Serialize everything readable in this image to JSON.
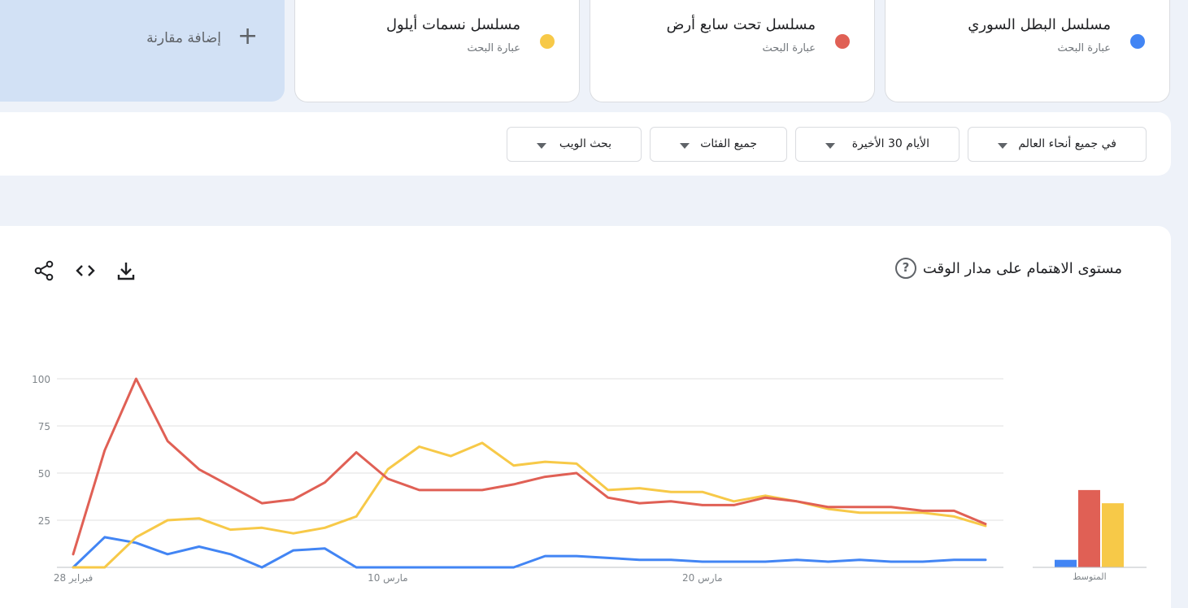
{
  "terms": [
    {
      "name": "مسلسل البطل السوري",
      "subtitle": "عبارة البحث",
      "color": "#4285f4"
    },
    {
      "name": "مسلسل تحت سابع أرض",
      "subtitle": "عبارة البحث",
      "color": "#e06055"
    },
    {
      "name": "مسلسل نسمات أيلول",
      "subtitle": "عبارة البحث",
      "color": "#f7c948"
    }
  ],
  "add_comparison": {
    "label": "إضافة مقارنة"
  },
  "filters": {
    "region": "في جميع أنحاء العالم",
    "period": "الأيام 30 الأخيرة",
    "category": "جميع الفئات",
    "search_type": "بحث الويب"
  },
  "chart": {
    "title": "مستوى الاهتمام على مدار الوقت",
    "average_label": "المتوسط"
  },
  "chart_data": {
    "type": "line",
    "ylim": [
      0,
      100
    ],
    "yticks": [
      25,
      50,
      75,
      100
    ],
    "xtick_labels": [
      {
        "index": 0,
        "label": "28 فبراير"
      },
      {
        "index": 10,
        "label": "10 مارس"
      },
      {
        "index": 20,
        "label": "20 مارس"
      }
    ],
    "series": [
      {
        "name": "مسلسل البطل السوري",
        "color": "#4285f4",
        "values": [
          0,
          16,
          13,
          7,
          11,
          7,
          0,
          9,
          10,
          0,
          0,
          0,
          0,
          0,
          0,
          6,
          6,
          5,
          4,
          4,
          3,
          3,
          3,
          4,
          3,
          4,
          3,
          3,
          4,
          4
        ]
      },
      {
        "name": "مسلسل تحت سابع أرض",
        "color": "#e06055",
        "values": [
          7,
          62,
          100,
          67,
          52,
          43,
          34,
          36,
          45,
          61,
          47,
          41,
          41,
          41,
          44,
          48,
          50,
          37,
          34,
          35,
          33,
          33,
          37,
          35,
          32,
          32,
          32,
          30,
          30,
          23
        ]
      },
      {
        "name": "مسلسل نسمات أيلول",
        "color": "#f7c948",
        "values": [
          0,
          0,
          16,
          25,
          26,
          20,
          21,
          18,
          21,
          27,
          52,
          64,
          59,
          66,
          54,
          56,
          55,
          41,
          42,
          40,
          40,
          35,
          38,
          35,
          31,
          29,
          29,
          29,
          27,
          22
        ]
      }
    ],
    "averages": [
      {
        "name": "مسلسل البطل السوري",
        "value": 4,
        "color": "#4285f4"
      },
      {
        "name": "مسلسل تحت سابع أرض",
        "value": 41,
        "color": "#e06055"
      },
      {
        "name": "مسلسل نسمات أيلول",
        "value": 34,
        "color": "#f7c948"
      }
    ]
  }
}
